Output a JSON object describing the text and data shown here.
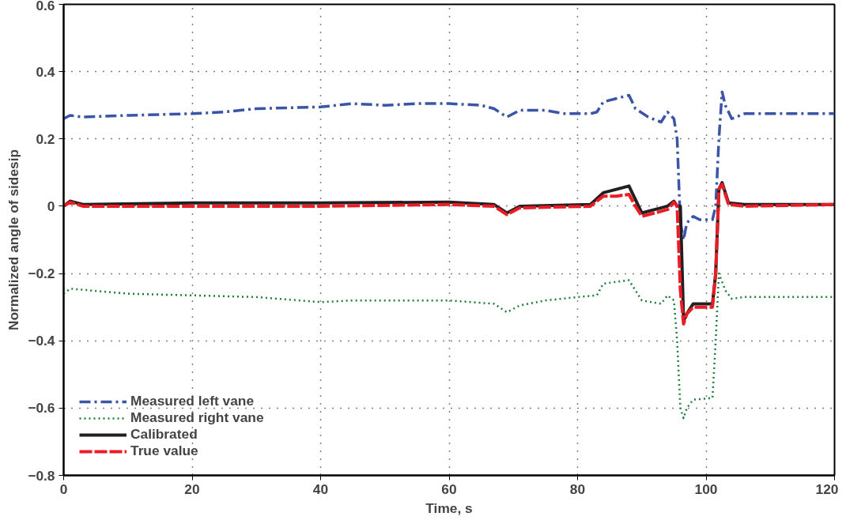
{
  "chart_data": {
    "type": "line",
    "xlabel": "Time, s",
    "ylabel": "Normalized angle of sidesip",
    "xlim": [
      0,
      120
    ],
    "ylim": [
      -0.8,
      0.6
    ],
    "xticks": [
      0,
      20,
      40,
      60,
      80,
      100,
      120
    ],
    "yticks": [
      {
        "value": -0.8,
        "label": "−0.8"
      },
      {
        "value": -0.6,
        "label": "−0.6"
      },
      {
        "value": -0.4,
        "label": "−0.4"
      },
      {
        "value": -0.2,
        "label": "−0.2"
      },
      0,
      0.2,
      0.4,
      0.6
    ],
    "grid": true,
    "legend": "bottom left",
    "marker": "none",
    "series": [
      {
        "name": "Measured left vane",
        "color": "#3a55a8",
        "line_style": "dashdot",
        "x": [
          0,
          1,
          3,
          10,
          20,
          25,
          30,
          40,
          45,
          50,
          55,
          60,
          65,
          67,
          69,
          71,
          75,
          78,
          82,
          83,
          84,
          86,
          88,
          89,
          91,
          93,
          94,
          95,
          95.5,
          96,
          96.5,
          97,
          98,
          99,
          101,
          101.5,
          102,
          102.5,
          103,
          104,
          106,
          110,
          120
        ],
        "values": [
          0.26,
          0.27,
          0.265,
          0.27,
          0.275,
          0.28,
          0.29,
          0.295,
          0.305,
          0.3,
          0.305,
          0.305,
          0.3,
          0.29,
          0.265,
          0.285,
          0.285,
          0.275,
          0.275,
          0.28,
          0.31,
          0.32,
          0.33,
          0.29,
          0.265,
          0.25,
          0.28,
          0.26,
          0.2,
          -0.05,
          -0.1,
          -0.05,
          -0.03,
          -0.04,
          -0.04,
          0.0,
          0.2,
          0.34,
          0.3,
          0.26,
          0.275,
          0.275,
          0.275
        ]
      },
      {
        "name": "Measured right vane",
        "color": "#1e7d3a",
        "line_style": "dotted",
        "x": [
          0,
          1,
          10,
          20,
          30,
          40,
          45,
          60,
          67,
          69,
          71,
          75,
          80,
          83,
          84,
          88,
          89,
          90,
          93,
          94,
          95,
          95.5,
          96,
          96.5,
          97,
          98,
          101,
          101.5,
          102,
          103,
          104,
          106,
          120
        ],
        "values": [
          -0.26,
          -0.245,
          -0.26,
          -0.265,
          -0.27,
          -0.285,
          -0.28,
          -0.28,
          -0.29,
          -0.315,
          -0.295,
          -0.28,
          -0.27,
          -0.265,
          -0.23,
          -0.22,
          -0.25,
          -0.28,
          -0.29,
          -0.265,
          -0.28,
          -0.4,
          -0.6,
          -0.63,
          -0.6,
          -0.575,
          -0.57,
          -0.4,
          -0.2,
          -0.25,
          -0.275,
          -0.27,
          -0.27
        ]
      },
      {
        "name": "Calibrated",
        "color": "#231f20",
        "line_style": "solid",
        "x": [
          0,
          1,
          3,
          20,
          40,
          60,
          67,
          69,
          71,
          82,
          84,
          86,
          88,
          89,
          90,
          92,
          94,
          95,
          95.5,
          96,
          96.5,
          97,
          98,
          101,
          101.5,
          102,
          102.5,
          103.5,
          106,
          120
        ],
        "values": [
          0.0,
          0.015,
          0.005,
          0.01,
          0.01,
          0.012,
          0.005,
          -0.02,
          0.0,
          0.005,
          0.04,
          0.05,
          0.06,
          0.02,
          -0.02,
          -0.01,
          0.0,
          0.015,
          0.0,
          null,
          -0.34,
          -0.32,
          -0.29,
          -0.29,
          -0.2,
          0.05,
          0.07,
          0.01,
          0.005,
          0.005
        ]
      },
      {
        "name": "True value",
        "color": "#ed1c24",
        "line_style": "dashed",
        "x": [
          0,
          1,
          3,
          20,
          40,
          60,
          67,
          69,
          71,
          82,
          84,
          86,
          88,
          89,
          90,
          92,
          94,
          95,
          95.5,
          96,
          96.5,
          97,
          98,
          101,
          101.5,
          102,
          102.5,
          103.5,
          106,
          120
        ],
        "values": [
          0.0,
          0.012,
          0.0,
          0.0,
          0.0,
          0.005,
          0.0,
          -0.025,
          -0.005,
          0.0,
          0.03,
          0.03,
          0.035,
          0.0,
          -0.03,
          -0.02,
          -0.01,
          0.012,
          0.0,
          -0.25,
          -0.35,
          -0.32,
          -0.3,
          -0.3,
          -0.2,
          0.05,
          0.065,
          0.005,
          0.0,
          0.005
        ]
      }
    ]
  }
}
